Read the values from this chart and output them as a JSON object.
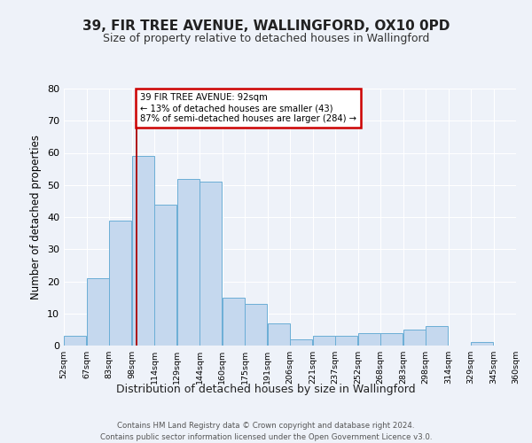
{
  "title": "39, FIR TREE AVENUE, WALLINGFORD, OX10 0PD",
  "subtitle": "Size of property relative to detached houses in Wallingford",
  "xlabel": "Distribution of detached houses by size in Wallingford",
  "ylabel": "Number of detached properties",
  "bin_labels": [
    "52sqm",
    "67sqm",
    "83sqm",
    "98sqm",
    "114sqm",
    "129sqm",
    "144sqm",
    "160sqm",
    "175sqm",
    "191sqm",
    "206sqm",
    "221sqm",
    "237sqm",
    "252sqm",
    "268sqm",
    "283sqm",
    "298sqm",
    "314sqm",
    "329sqm",
    "345sqm",
    "360sqm"
  ],
  "bar_heights": [
    3,
    21,
    39,
    59,
    44,
    52,
    51,
    15,
    13,
    7,
    2,
    3,
    3,
    4,
    4,
    5,
    6,
    0,
    1,
    0
  ],
  "bar_color": "#c5d8ee",
  "bar_edge_color": "#6baed6",
  "vline_bin": 2.72,
  "vline_color": "#aa0000",
  "ylim": [
    0,
    80
  ],
  "yticks": [
    0,
    10,
    20,
    30,
    40,
    50,
    60,
    70,
    80
  ],
  "annotation_text": "39 FIR TREE AVENUE: 92sqm\n← 13% of detached houses are smaller (43)\n87% of semi-detached houses are larger (284) →",
  "annotation_box_facecolor": "#ffffff",
  "annotation_box_edgecolor": "#cc0000",
  "footer_line1": "Contains HM Land Registry data © Crown copyright and database right 2024.",
  "footer_line2": "Contains public sector information licensed under the Open Government Licence v3.0.",
  "background_color": "#eef2f9",
  "grid_color": "#ffffff",
  "title_fontsize": 11,
  "subtitle_fontsize": 9
}
